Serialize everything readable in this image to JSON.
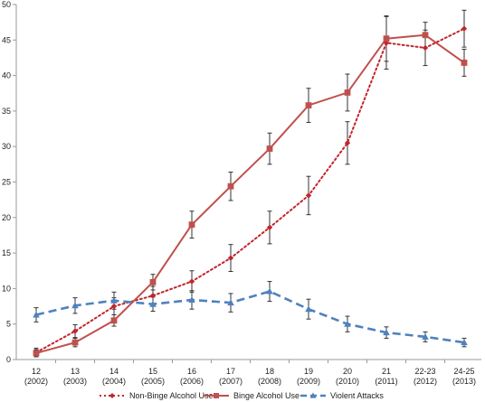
{
  "chart_data": {
    "type": "line",
    "categories": [
      [
        "12",
        "(2002)"
      ],
      [
        "13",
        "(2003)"
      ],
      [
        "14",
        "(2004)"
      ],
      [
        "15",
        "(2005)"
      ],
      [
        "16",
        "(2006)"
      ],
      [
        "17",
        "(2007)"
      ],
      [
        "18",
        "(2008)"
      ],
      [
        "19",
        "(2009)"
      ],
      [
        "20",
        "(2010)"
      ],
      [
        "21",
        "(2011)"
      ],
      [
        "22-23",
        "(2012)"
      ],
      [
        "24-25",
        "(2013)"
      ]
    ],
    "ylim": [
      0,
      50
    ],
    "yticks": [
      0,
      5,
      10,
      15,
      20,
      25,
      30,
      35,
      40,
      45,
      50
    ],
    "grid": false,
    "legend_position": "bottom",
    "series": [
      {
        "name": "Non-Binge Alcohol Use",
        "color": "#c0262d",
        "style": "dotted",
        "marker": "diamond",
        "values": [
          1.0,
          4.0,
          7.5,
          9.0,
          11.0,
          14.3,
          18.6,
          23.1,
          30.5,
          44.6,
          43.9,
          46.6
        ],
        "errors": [
          0.6,
          0.9,
          1.2,
          1.3,
          1.5,
          1.9,
          2.3,
          2.7,
          3.0,
          3.7,
          2.5,
          2.6
        ]
      },
      {
        "name": "Binge Alcohol Use",
        "color": "#c0504d",
        "style": "solid",
        "marker": "square",
        "values": [
          0.9,
          2.4,
          5.5,
          10.9,
          19.0,
          24.4,
          29.7,
          35.8,
          37.6,
          45.2,
          45.7,
          41.8
        ],
        "errors": [
          0.5,
          0.6,
          0.8,
          1.1,
          1.9,
          2.0,
          2.2,
          2.4,
          2.6,
          3.2,
          1.8,
          1.9
        ]
      },
      {
        "name": "Violent Attacks",
        "color": "#4f81bd",
        "style": "dashed",
        "marker": "triangle",
        "values": [
          6.3,
          7.6,
          8.3,
          7.8,
          8.4,
          8.0,
          9.6,
          7.1,
          5.0,
          3.8,
          3.2,
          2.4
        ],
        "errors": [
          1.0,
          1.1,
          1.2,
          1.0,
          1.3,
          1.3,
          1.4,
          1.4,
          1.1,
          0.8,
          0.7,
          0.6
        ]
      }
    ]
  }
}
